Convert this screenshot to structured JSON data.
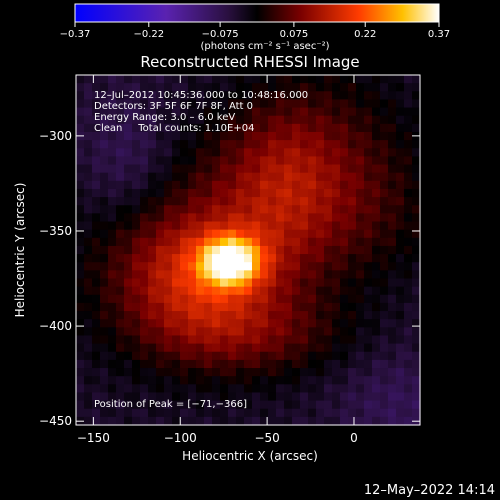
{
  "chart_data": {
    "type": "heatmap",
    "title": "Reconstructed RHESSI Image",
    "xlabel": "Heliocentric X (arcsec)",
    "ylabel": "Heliocentric Y (arcsec)",
    "xlim": [
      -160,
      38
    ],
    "ylim": [
      -452,
      -268
    ],
    "x_ticks": [
      -150,
      -100,
      -50,
      0
    ],
    "y_ticks": [
      -300,
      -350,
      -400,
      -450
    ],
    "x_tick_labels": [
      "−150",
      "−100",
      "−50",
      "0"
    ],
    "y_tick_labels": [
      "−300",
      "−350",
      "−400",
      "−450"
    ],
    "colorbar": {
      "range": [
        -0.37,
        0.37
      ],
      "ticks": [
        -0.37,
        -0.22,
        -0.075,
        0.075,
        0.22,
        0.37
      ],
      "tick_labels": [
        "−0.37",
        "−0.22",
        "−0.075",
        "0.075",
        "0.22",
        "0.37"
      ],
      "unit_label": "(photons cm⁻² s⁻¹ asec⁻²)"
    },
    "annotations": [
      "12–Jul–2012 10:45:36.000 to 10:48:16.000",
      "Detectors: 3F 5F 6F 7F 8F, Att 0",
      "Energy Range: 3.0 – 6.0 keV",
      "Clean     Total counts: 1.10E+04"
    ],
    "peak_label": "Position of Peak = [−71,−366]",
    "peak": [
      -71,
      -366
    ],
    "sources": [
      {
        "x": -71,
        "y": -366,
        "amp": 0.3,
        "sx": 12,
        "sy": 9
      },
      {
        "x": -90,
        "y": -375,
        "amp": 0.12,
        "sx": 30,
        "sy": 22
      },
      {
        "x": -85,
        "y": -360,
        "amp": 0.1,
        "sx": 50,
        "sy": 40
      },
      {
        "x": -40,
        "y": -325,
        "amp": 0.1,
        "sx": 25,
        "sy": 30
      },
      {
        "x": -10,
        "y": -300,
        "amp": 0.05,
        "sx": 35,
        "sy": 30
      },
      {
        "x": 10,
        "y": -340,
        "amp": 0.05,
        "sx": 30,
        "sy": 25
      },
      {
        "x": -60,
        "y": -405,
        "amp": 0.07,
        "sx": 40,
        "sy": 15
      },
      {
        "x": -130,
        "y": -315,
        "amp": -0.06,
        "sx": 20,
        "sy": 25
      },
      {
        "x": 25,
        "y": -440,
        "amp": -0.04,
        "sx": 25,
        "sy": 20
      }
    ],
    "background": -0.04,
    "grid": false,
    "legend": "none"
  },
  "footer": {
    "timestamp": "12–May–2022 14:14"
  }
}
